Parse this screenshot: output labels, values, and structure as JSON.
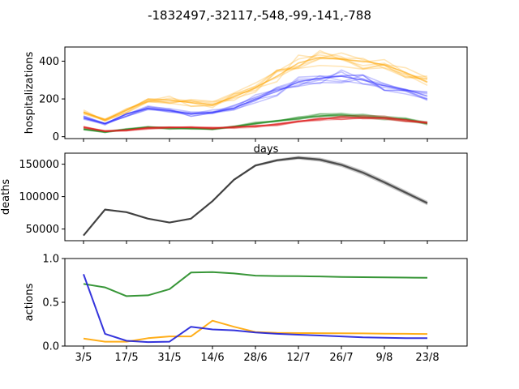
{
  "figure_title": "-1832497,-32117,-548,-99,-141,-788",
  "chart_data": [
    {
      "type": "line",
      "ylabel": "hospitalizations",
      "xlabel": "days",
      "ylim": [
        -10,
        475
      ],
      "yticks": [
        0,
        200,
        400
      ],
      "x": [
        "3/5",
        "10/5",
        "17/5",
        "24/5",
        "31/5",
        "7/6",
        "14/6",
        "21/6",
        "28/6",
        "5/7",
        "12/7",
        "19/7",
        "26/7",
        "2/8",
        "9/8",
        "16/8",
        "23/8"
      ],
      "series": [
        {
          "color": "#ffa500",
          "values": [
            130,
            90,
            140,
            200,
            195,
            180,
            170,
            210,
            260,
            320,
            390,
            420,
            410,
            400,
            380,
            340,
            290
          ]
        },
        {
          "color": "#3030ff",
          "values": [
            100,
            70,
            120,
            150,
            140,
            120,
            130,
            150,
            200,
            240,
            290,
            310,
            320,
            300,
            270,
            250,
            215
          ]
        },
        {
          "color": "#228b22",
          "values": [
            40,
            25,
            40,
            50,
            45,
            45,
            40,
            55,
            70,
            85,
            100,
            110,
            115,
            110,
            100,
            90,
            70
          ]
        },
        {
          "color": "#e02020",
          "values": [
            50,
            30,
            35,
            45,
            50,
            50,
            45,
            50,
            55,
            65,
            80,
            95,
            100,
            105,
            100,
            90,
            75
          ]
        }
      ]
    },
    {
      "type": "line",
      "ylabel": "deaths",
      "ylim": [
        32000,
        167000
      ],
      "yticks": [
        50000,
        100000,
        150000
      ],
      "ytick_labels": [
        "50000",
        "100000",
        "150000"
      ],
      "x": [
        "3/5",
        "10/5",
        "17/5",
        "24/5",
        "31/5",
        "7/6",
        "14/6",
        "21/6",
        "28/6",
        "5/7",
        "12/7",
        "19/7",
        "26/7",
        "2/8",
        "9/8",
        "16/8",
        "23/8"
      ],
      "series": [
        {
          "color": "#333333",
          "values": [
            40000,
            80000,
            76000,
            66000,
            60000,
            66000,
            93000,
            126000,
            148000,
            156000,
            160000,
            157000,
            149000,
            137000,
            122000,
            106000,
            90000
          ]
        }
      ]
    },
    {
      "type": "line",
      "ylabel": "actions",
      "ylim": [
        0,
        1.0
      ],
      "yticks": [
        0.0,
        0.5,
        1.0
      ],
      "ytick_labels": [
        "0.0",
        "0.5",
        "1.0"
      ],
      "x": [
        "3/5",
        "10/5",
        "17/5",
        "24/5",
        "31/5",
        "7/6",
        "14/6",
        "21/6",
        "28/6",
        "5/7",
        "12/7",
        "19/7",
        "26/7",
        "2/8",
        "9/8",
        "16/8",
        "23/8"
      ],
      "xtick_labels": [
        "3/5",
        "17/5",
        "31/5",
        "14/6",
        "28/6",
        "12/7",
        "26/7",
        "9/8",
        "23/8"
      ],
      "series": [
        {
          "color": "#228b22",
          "values": [
            0.71,
            0.67,
            0.57,
            0.58,
            0.65,
            0.84,
            0.845,
            0.83,
            0.805,
            0.8,
            0.798,
            0.795,
            0.79,
            0.787,
            0.785,
            0.782,
            0.78
          ]
        },
        {
          "color": "#ffa500",
          "values": [
            0.085,
            0.05,
            0.05,
            0.09,
            0.11,
            0.11,
            0.29,
            0.22,
            0.16,
            0.15,
            0.148,
            0.147,
            0.146,
            0.144,
            0.142,
            0.14,
            0.138
          ]
        },
        {
          "color": "#1f1fd8",
          "values": [
            0.82,
            0.14,
            0.06,
            0.045,
            0.05,
            0.22,
            0.19,
            0.18,
            0.155,
            0.14,
            0.13,
            0.12,
            0.11,
            0.1,
            0.095,
            0.09,
            0.09
          ]
        }
      ]
    }
  ]
}
